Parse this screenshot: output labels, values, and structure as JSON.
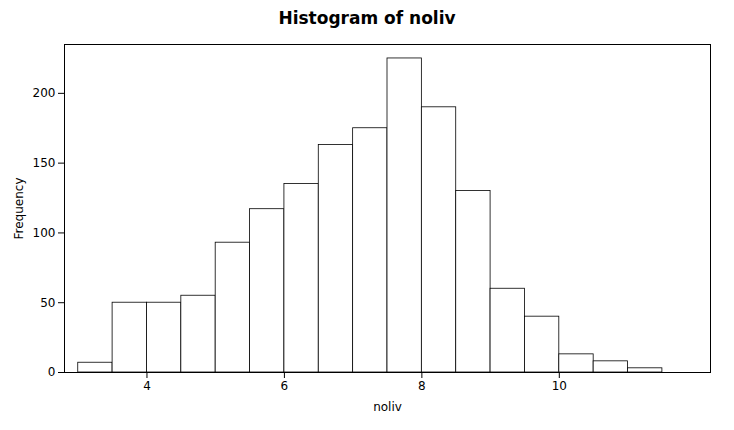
{
  "chart_data": {
    "type": "histogram",
    "title": "Histogram of noliv",
    "xlabel": "noliv",
    "ylabel": "Frequency",
    "bins": [
      3.0,
      3.5,
      4.0,
      4.5,
      5.0,
      5.5,
      6.0,
      6.5,
      7.0,
      7.5,
      8.0,
      8.5,
      9.0,
      9.5,
      10.0,
      10.5,
      11.0,
      11.5
    ],
    "values": [
      7,
      50,
      50,
      55,
      93,
      117,
      135,
      163,
      175,
      225,
      190,
      130,
      60,
      40,
      13,
      8,
      3
    ],
    "color": "#ffffff",
    "xlim": [
      2.8,
      12.2
    ],
    "ylim": [
      0,
      235
    ],
    "xticks": [
      4,
      6,
      8,
      10
    ],
    "yticks": [
      0,
      50,
      100,
      150,
      200
    ],
    "grid": false
  }
}
